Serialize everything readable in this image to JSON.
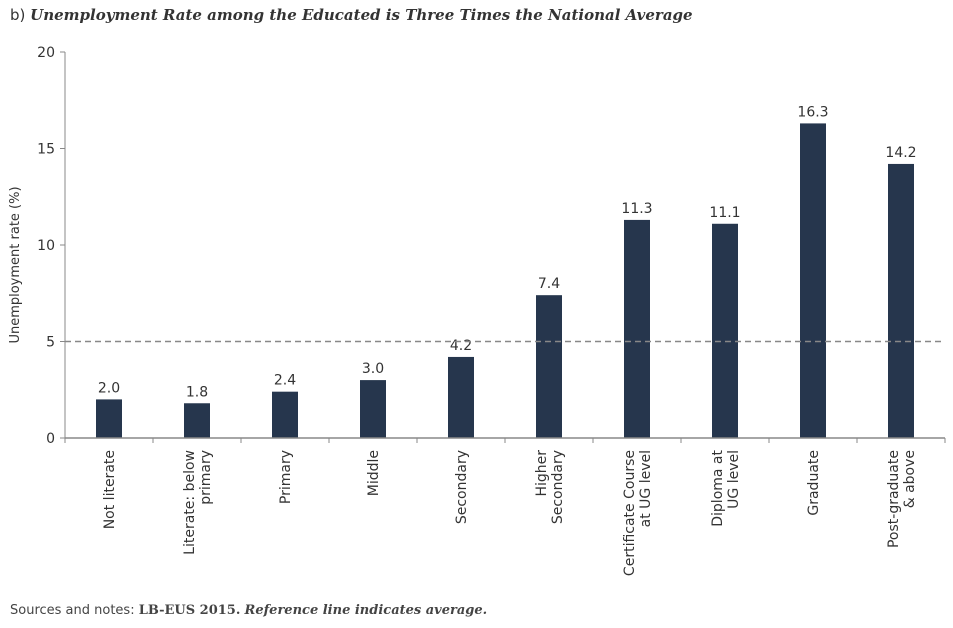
{
  "title": {
    "prefix": "b)",
    "text": "Unemployment Rate among the Educated is Three Times the National Average"
  },
  "footer": {
    "label": "Sources and notes:",
    "source": "LB-EUS 2015.",
    "note": "Reference line indicates average."
  },
  "colors": {
    "bar": "#26364d",
    "axis": "#888888",
    "reference_line": "#888888"
  },
  "chart_data": {
    "type": "bar",
    "title": "Unemployment Rate among the Educated is Three Times the National Average",
    "xlabel": "",
    "ylabel": "Unemployment rate (%)",
    "ylim": [
      0,
      20
    ],
    "yticks": [
      "0",
      "5",
      "10",
      "15",
      "20"
    ],
    "reference_line": 5,
    "categories": [
      [
        "Not literate"
      ],
      [
        "Literate: below",
        "primary"
      ],
      [
        "Primary"
      ],
      [
        "Middle"
      ],
      [
        "Secondary"
      ],
      [
        "Higher",
        "Secondary"
      ],
      [
        "Certificate Course",
        "at UG level"
      ],
      [
        "Diploma at",
        "UG level"
      ],
      [
        "Graduate"
      ],
      [
        "Post-graduate",
        "& above"
      ]
    ],
    "values": [
      2.0,
      1.8,
      2.4,
      3.0,
      4.2,
      7.4,
      11.3,
      11.1,
      16.3,
      14.2
    ],
    "value_labels": [
      "2.0",
      "1.8",
      "2.4",
      "3.0",
      "4.2",
      "7.4",
      "11.3",
      "11.1",
      "16.3",
      "14.2"
    ]
  }
}
